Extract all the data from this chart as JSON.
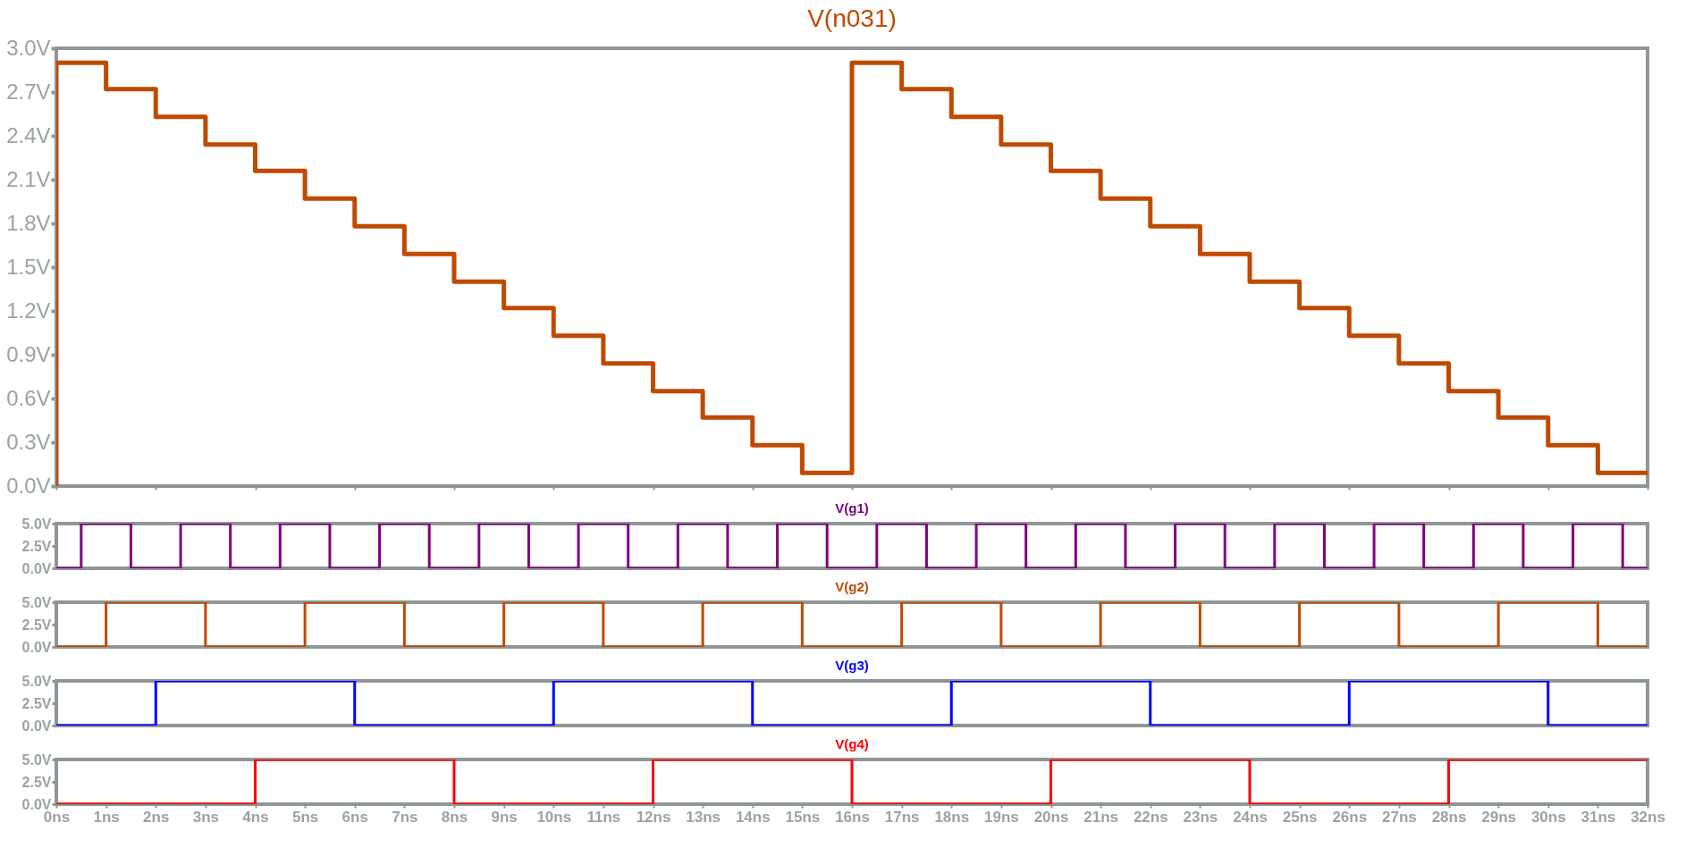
{
  "chart_data": [
    {
      "type": "step",
      "title": "V(n031)",
      "x": [
        0,
        0,
        1,
        2,
        3,
        4,
        5,
        6,
        7,
        8,
        9,
        10,
        11,
        12,
        13,
        14,
        15,
        16,
        17,
        18,
        19,
        20,
        21,
        22,
        23,
        24,
        25,
        26,
        27,
        28,
        29,
        30,
        31,
        32
      ],
      "series": [
        {
          "color": "#c04a00",
          "values": [
            0,
            2.9,
            2.72,
            2.53,
            2.34,
            2.16,
            1.97,
            1.78,
            1.59,
            1.4,
            1.22,
            1.03,
            0.84,
            0.65,
            0.47,
            0.28,
            0.09,
            2.9,
            2.72,
            2.53,
            2.34,
            2.16,
            1.97,
            1.78,
            1.59,
            1.4,
            1.22,
            1.03,
            0.84,
            0.65,
            0.47,
            0.28,
            0.09,
            0.09
          ]
        }
      ],
      "xlim": [
        0,
        32
      ],
      "xticks": [
        {
          "value": 0,
          "label": null
        },
        {
          "value": 2,
          "label": null
        },
        {
          "value": 4,
          "label": null
        },
        {
          "value": 6,
          "label": null
        },
        {
          "value": 8,
          "label": null
        },
        {
          "value": 10,
          "label": null
        },
        {
          "value": 12,
          "label": null
        },
        {
          "value": 14,
          "label": null
        },
        {
          "value": 16,
          "label": null
        },
        {
          "value": 18,
          "label": null
        },
        {
          "value": 20,
          "label": null
        },
        {
          "value": 22,
          "label": null
        },
        {
          "value": 24,
          "label": null
        },
        {
          "value": 26,
          "label": null
        },
        {
          "value": 28,
          "label": null
        },
        {
          "value": 30,
          "label": null
        },
        {
          "value": 32,
          "label": null
        }
      ],
      "ylim": [
        0,
        3
      ],
      "yticks": [
        {
          "value": 0,
          "label": "0.0V"
        },
        {
          "value": 0.3,
          "label": "0.3V"
        },
        {
          "value": 0.6,
          "label": "0.6V"
        },
        {
          "value": 0.9,
          "label": "0.9V"
        },
        {
          "value": 1.2,
          "label": "1.2V"
        },
        {
          "value": 1.5,
          "label": "1.5V"
        },
        {
          "value": 1.8,
          "label": "1.8V"
        },
        {
          "value": 2.1,
          "label": "2.1V"
        },
        {
          "value": 2.4,
          "label": "2.4V"
        },
        {
          "value": 2.7,
          "label": "2.7V"
        },
        {
          "value": 3,
          "label": "3.0V"
        }
      ],
      "tick_labels": "y"
    },
    {
      "type": "step",
      "title": "V(g1)",
      "x": [
        0,
        0.5,
        1.5,
        2.5,
        3.5,
        4.5,
        5.5,
        6.5,
        7.5,
        8.5,
        9.5,
        10.5,
        11.5,
        12.5,
        13.5,
        14.5,
        15.5,
        16.5,
        17.5,
        18.5,
        19.5,
        20.5,
        21.5,
        22.5,
        23.5,
        24.5,
        25.5,
        26.5,
        27.5,
        28.5,
        29.5,
        30.5,
        31.5,
        32
      ],
      "series": [
        {
          "color": "#800080",
          "values": [
            0,
            5,
            0,
            5,
            0,
            5,
            0,
            5,
            0,
            5,
            0,
            5,
            0,
            5,
            0,
            5,
            0,
            5,
            0,
            5,
            0,
            5,
            0,
            5,
            0,
            5,
            0,
            5,
            0,
            5,
            0,
            5,
            0,
            0
          ]
        }
      ],
      "xlim": [
        0,
        32
      ],
      "ylim": [
        0,
        5
      ],
      "yticks": [
        {
          "value": 0,
          "label": "0.0V"
        },
        {
          "value": 2.5,
          "label": "2.5V"
        },
        {
          "value": 5,
          "label": "5.0V"
        }
      ],
      "tick_labels": "y"
    },
    {
      "type": "step",
      "title": "V(g2)",
      "x": [
        0,
        1,
        3,
        5,
        7,
        9,
        11,
        13,
        15,
        17,
        19,
        21,
        23,
        25,
        27,
        29,
        31,
        32
      ],
      "series": [
        {
          "color": "#c04a00",
          "values": [
            0,
            5,
            0,
            5,
            0,
            5,
            0,
            5,
            0,
            5,
            0,
            5,
            0,
            5,
            0,
            5,
            0,
            0
          ]
        }
      ],
      "xlim": [
        0,
        32
      ],
      "ylim": [
        0,
        5
      ],
      "yticks": [
        {
          "value": 0,
          "label": "0.0V"
        },
        {
          "value": 2.5,
          "label": "2.5V"
        },
        {
          "value": 5,
          "label": "5.0V"
        }
      ],
      "tick_labels": "y"
    },
    {
      "type": "step",
      "title": "V(g3)",
      "x": [
        0,
        2,
        6,
        10,
        14,
        18,
        22,
        26,
        30,
        32
      ],
      "series": [
        {
          "color": "#0000ff",
          "values": [
            0,
            5,
            0,
            5,
            0,
            5,
            0,
            5,
            0,
            0
          ]
        }
      ],
      "xlim": [
        0,
        32
      ],
      "ylim": [
        0,
        5
      ],
      "yticks": [
        {
          "value": 0,
          "label": "0.0V"
        },
        {
          "value": 2.5,
          "label": "2.5V"
        },
        {
          "value": 5,
          "label": "5.0V"
        }
      ],
      "tick_labels": "y"
    },
    {
      "type": "step",
      "title": "V(g4)",
      "x": [
        0,
        4,
        8,
        12,
        16,
        20,
        24,
        28,
        32
      ],
      "series": [
        {
          "color": "#ff0000",
          "values": [
            0,
            5,
            0,
            5,
            0,
            5,
            0,
            5,
            5
          ]
        }
      ],
      "xlim": [
        0,
        32
      ],
      "xticks": [
        {
          "value": 0,
          "label": "0ns"
        },
        {
          "value": 1,
          "label": "1ns"
        },
        {
          "value": 2,
          "label": "2ns"
        },
        {
          "value": 3,
          "label": "3ns"
        },
        {
          "value": 4,
          "label": "4ns"
        },
        {
          "value": 5,
          "label": "5ns"
        },
        {
          "value": 6,
          "label": "6ns"
        },
        {
          "value": 7,
          "label": "7ns"
        },
        {
          "value": 8,
          "label": "8ns"
        },
        {
          "value": 9,
          "label": "9ns"
        },
        {
          "value": 10,
          "label": "10ns"
        },
        {
          "value": 11,
          "label": "11ns"
        },
        {
          "value": 12,
          "label": "12ns"
        },
        {
          "value": 13,
          "label": "13ns"
        },
        {
          "value": 14,
          "label": "14ns"
        },
        {
          "value": 15,
          "label": "15ns"
        },
        {
          "value": 16,
          "label": "16ns"
        },
        {
          "value": 17,
          "label": "17ns"
        },
        {
          "value": 18,
          "label": "18ns"
        },
        {
          "value": 19,
          "label": "19ns"
        },
        {
          "value": 20,
          "label": "20ns"
        },
        {
          "value": 21,
          "label": "21ns"
        },
        {
          "value": 22,
          "label": "22ns"
        },
        {
          "value": 23,
          "label": "23ns"
        },
        {
          "value": 24,
          "label": "24ns"
        },
        {
          "value": 25,
          "label": "25ns"
        },
        {
          "value": 26,
          "label": "26ns"
        },
        {
          "value": 27,
          "label": "27ns"
        },
        {
          "value": 28,
          "label": "28ns"
        },
        {
          "value": 29,
          "label": "29ns"
        },
        {
          "value": 30,
          "label": "30ns"
        },
        {
          "value": 31,
          "label": "31ns"
        },
        {
          "value": 32,
          "label": "32ns"
        }
      ],
      "ylim": [
        0,
        5
      ],
      "yticks": [
        {
          "value": 0,
          "label": "0.0V"
        },
        {
          "value": 2.5,
          "label": "2.5V"
        },
        {
          "value": 5,
          "label": "5.0V"
        }
      ]
    }
  ]
}
